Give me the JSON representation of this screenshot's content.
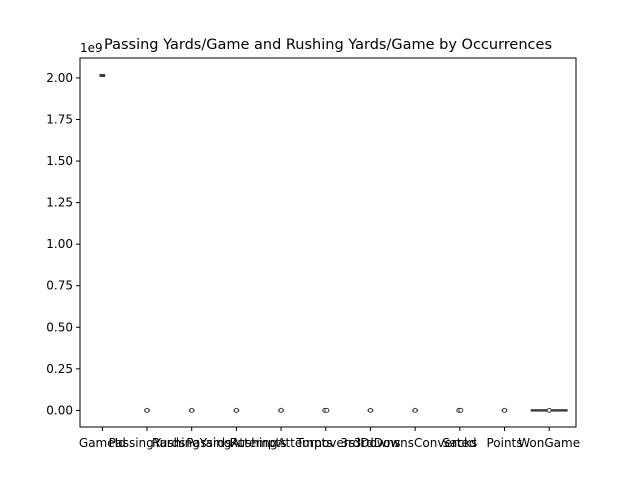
{
  "chart_data": {
    "type": "box",
    "title": "Passing Yards/Game and Rushing Yards/Game by Occurrences",
    "xlabel": "",
    "ylabel": "",
    "y_offset_label": "1e9",
    "ylim": [
      -0.1,
      2.12
    ],
    "y_ticks": [
      "0.00",
      "0.25",
      "0.50",
      "0.75",
      "1.00",
      "1.25",
      "1.50",
      "1.75",
      "2.00"
    ],
    "y_tick_values": [
      0.0,
      0.25,
      0.5,
      0.75,
      1.0,
      1.25,
      1.5,
      1.75,
      2.0
    ],
    "categories": [
      "GameId",
      "PassingYards",
      "RushingYards",
      "PassingAttempts",
      "RushingAttempts",
      "Turnovers",
      "3rdDowns",
      "3rdDownsConverted",
      "Sacks",
      "Points",
      "WonGame"
    ],
    "boxes": [
      {
        "category": "GameId",
        "median": 2.0155,
        "q1": 2.0095,
        "q3": 2.0205,
        "whisker_low": 2.008,
        "whisker_high": 2.022,
        "fliers": []
      },
      {
        "category": "PassingYards",
        "median": 0.0,
        "q1": 0.0,
        "q3": 0.0,
        "whisker_low": 0.0,
        "whisker_high": 0.0,
        "fliers": [
          0.0
        ]
      },
      {
        "category": "RushingYards",
        "median": 0.0,
        "q1": 0.0,
        "q3": 0.0,
        "whisker_low": 0.0,
        "whisker_high": 0.0,
        "fliers": [
          0.0
        ]
      },
      {
        "category": "PassingAttempts",
        "median": 0.0,
        "q1": 0.0,
        "q3": 0.0,
        "whisker_low": 0.0,
        "whisker_high": 0.0,
        "fliers": [
          0.0
        ]
      },
      {
        "category": "RushingAttempts",
        "median": 0.0,
        "q1": 0.0,
        "q3": 0.0,
        "whisker_low": 0.0,
        "whisker_high": 0.0,
        "fliers": [
          0.0
        ]
      },
      {
        "category": "Turnovers",
        "median": 0.0,
        "q1": 0.0,
        "q3": 0.0,
        "whisker_low": 0.0,
        "whisker_high": 0.0,
        "fliers": [
          0.0,
          0.0
        ]
      },
      {
        "category": "3rdDowns",
        "median": 0.0,
        "q1": 0.0,
        "q3": 0.0,
        "whisker_low": 0.0,
        "whisker_high": 0.0,
        "fliers": [
          0.0
        ]
      },
      {
        "category": "3rdDownsConverted",
        "median": 0.0,
        "q1": 0.0,
        "q3": 0.0,
        "whisker_low": 0.0,
        "whisker_high": 0.0,
        "fliers": [
          0.0
        ]
      },
      {
        "category": "Sacks",
        "median": 0.0,
        "q1": 0.0,
        "q3": 0.0,
        "whisker_low": 0.0,
        "whisker_high": 0.0,
        "fliers": [
          0.0,
          0.0
        ]
      },
      {
        "category": "Points",
        "median": 0.0,
        "q1": 0.0,
        "q3": 0.0,
        "whisker_low": 0.0,
        "whisker_high": 0.0,
        "fliers": [
          0.0
        ]
      },
      {
        "category": "WonGame",
        "median": 0.0,
        "q1": 0.0,
        "q3": 0.0,
        "whisker_low": 0.0,
        "whisker_high": 0.0,
        "fliers": [
          0.0
        ]
      }
    ],
    "grid": false,
    "legend": "none",
    "colors": {
      "box": "#3a3a3a",
      "axis": "#000000",
      "background": "#ffffff"
    }
  }
}
